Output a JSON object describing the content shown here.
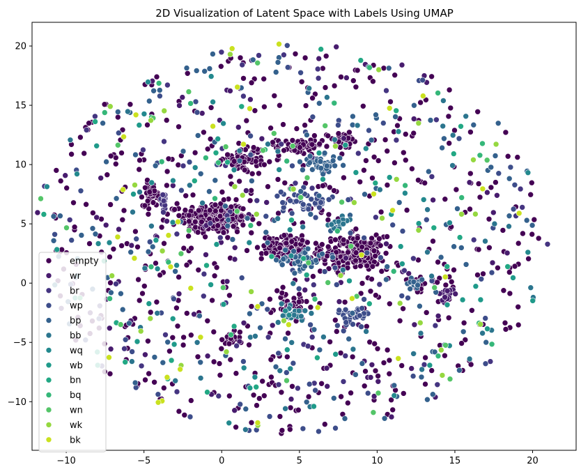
{
  "chart_data": {
    "type": "scatter",
    "title": "2D Visualization of Latent Space with Labels Using UMAP",
    "xlabel": "",
    "ylabel": "",
    "xlim": [
      -12.2,
      22.8
    ],
    "ylim": [
      -14.1,
      22.0
    ],
    "xticks": [
      -10,
      -5,
      0,
      5,
      10,
      15,
      20
    ],
    "yticks": [
      -10,
      -5,
      0,
      5,
      10,
      15,
      20
    ],
    "grid": false,
    "legend_position": "lower-left",
    "point_edge_color": "#ffffff",
    "series": [
      {
        "name": "empty",
        "color": "#440154",
        "clusters": [
          {
            "center": [
              -0.5,
              5.5
            ],
            "spread": [
              1.9,
              1.2
            ],
            "count": 260
          },
          {
            "center": [
              8.5,
              2.5
            ],
            "spread": [
              1.8,
              1.3
            ],
            "count": 190
          },
          {
            "center": [
              4.5,
              3.0
            ],
            "spread": [
              1.7,
              0.9
            ],
            "count": 120
          },
          {
            "center": [
              1.5,
              10.5
            ],
            "spread": [
              1.3,
              0.9
            ],
            "count": 70
          },
          {
            "center": [
              5.0,
              11.5
            ],
            "spread": [
              1.3,
              0.6
            ],
            "count": 60
          },
          {
            "center": [
              7.8,
              12.0
            ],
            "spread": [
              1.0,
              0.6
            ],
            "count": 35
          },
          {
            "center": [
              -4.5,
              7.5
            ],
            "spread": [
              0.5,
              0.9
            ],
            "count": 45
          },
          {
            "center": [
              0.5,
              -4.8
            ],
            "spread": [
              0.6,
              0.6
            ],
            "count": 20
          },
          {
            "center": [
              4.5,
              -2.0
            ],
            "spread": [
              1.0,
              1.2
            ],
            "count": 40
          },
          {
            "center": [
              12.5,
              0.0
            ],
            "spread": [
              0.6,
              0.5
            ],
            "count": 25
          }
        ],
        "background_count": 520
      },
      {
        "name": "wr",
        "color": "#481c6e",
        "clusters": [
          {
            "center": [
              14.5,
              -1.0
            ],
            "spread": [
              0.6,
              0.6
            ],
            "count": 15
          }
        ],
        "background_count": 90
      },
      {
        "name": "br",
        "color": "#453581",
        "clusters": [
          {
            "center": [
              -3.8,
              7.0
            ],
            "spread": [
              0.3,
              0.8
            ],
            "count": 15
          }
        ],
        "background_count": 70
      },
      {
        "name": "wp",
        "color": "#3d4d8a",
        "clusters": [
          {
            "center": [
              5.5,
              6.8
            ],
            "spread": [
              1.5,
              1.0
            ],
            "count": 45
          },
          {
            "center": [
              8.5,
              -2.5
            ],
            "spread": [
              1.1,
              0.8
            ],
            "count": 30
          }
        ],
        "background_count": 90
      },
      {
        "name": "bp",
        "color": "#34618d",
        "clusters": [
          {
            "center": [
              6.5,
              10.0
            ],
            "spread": [
              1.2,
              0.7
            ],
            "count": 40
          },
          {
            "center": [
              5.0,
              2.0
            ],
            "spread": [
              1.3,
              0.9
            ],
            "count": 40
          },
          {
            "center": [
              12.5,
              0.0
            ],
            "spread": [
              0.5,
              0.5
            ],
            "count": 15
          }
        ],
        "background_count": 140
      },
      {
        "name": "bb",
        "color": "#2b758e",
        "clusters": [
          {
            "center": [
              4.5,
              -2.5
            ],
            "spread": [
              0.8,
              1.0
            ],
            "count": 20
          },
          {
            "center": [
              7.5,
              5.0
            ],
            "spread": [
              0.8,
              0.5
            ],
            "count": 15
          }
        ],
        "background_count": 60
      },
      {
        "name": "wq",
        "color": "#23898e",
        "clusters": [],
        "background_count": 35
      },
      {
        "name": "wb",
        "color": "#1f9a8a",
        "clusters": [],
        "background_count": 35
      },
      {
        "name": "bn",
        "color": "#22a884",
        "clusters": [],
        "background_count": 35
      },
      {
        "name": "bq",
        "color": "#35b779",
        "clusters": [],
        "background_count": 30
      },
      {
        "name": "wn",
        "color": "#54c568",
        "clusters": [],
        "background_count": 30
      },
      {
        "name": "wk",
        "color": "#95d840",
        "clusters": [],
        "background_count": 35
      },
      {
        "name": "bk",
        "color": "#cae11f",
        "clusters": [],
        "background_count": 35
      }
    ],
    "background_disc": {
      "center": [
        4.5,
        3.8
      ],
      "radius_x": 16.5,
      "radius_y": 16.5
    }
  }
}
